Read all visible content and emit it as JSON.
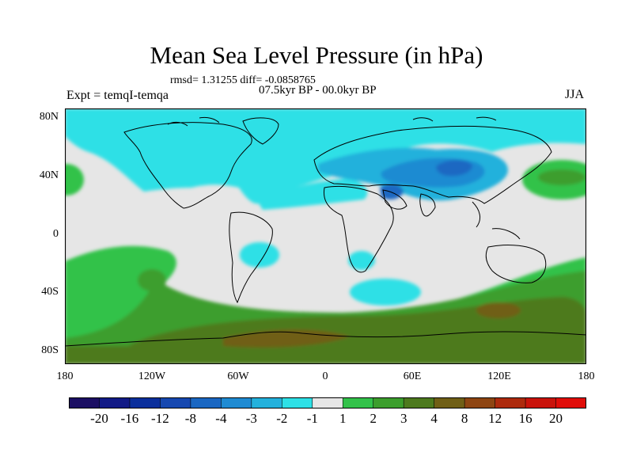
{
  "map": {
    "title": "Mean Sea Level Pressure (in hPa)",
    "stats": "rmsd= 1.31255 diff= -0.0858765",
    "period": "07.5kyr BP - 00.0kyr BP",
    "experiment": "Expt = temqI-temqa",
    "season": "JJA",
    "lat_labels": [
      "80N",
      "40N",
      "0",
      "40S",
      "80S"
    ],
    "lon_labels": [
      "180",
      "120W",
      "60W",
      "0",
      "60E",
      "120E",
      "180"
    ]
  },
  "colorbar": {
    "labels": [
      "-20",
      "-16",
      "-12",
      "-8",
      "-4",
      "-3",
      "-2",
      "-1",
      "1",
      "2",
      "3",
      "4",
      "8",
      "12",
      "16",
      "20"
    ],
    "colors": [
      "#1b0f63",
      "#121a86",
      "#0b2f9c",
      "#1648b0",
      "#1a67c2",
      "#1f8bd2",
      "#24b1dc",
      "#2ee0e6",
      "#e6e6e6",
      "#33c24a",
      "#3c9e2d",
      "#4d7a1e",
      "#705f16",
      "#8e4512",
      "#ad2a0d",
      "#c9130b",
      "#e00d09"
    ]
  },
  "palette": {
    "neutral": "#e6e6e6",
    "cyan": "#2ee0e6",
    "light_blue": "#24b1dc",
    "mid_blue": "#1f8bd2",
    "blue": "#1a67c2",
    "green": "#33c24a",
    "dark_green": "#3c9e2d",
    "olive": "#4d7a1e",
    "brown": "#705f16"
  }
}
